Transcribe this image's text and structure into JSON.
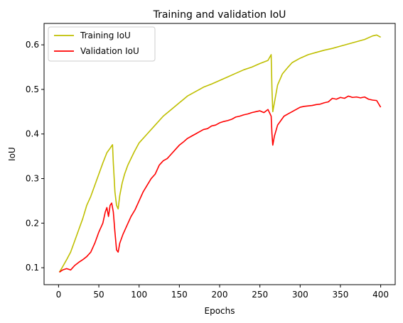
{
  "chart_data": {
    "type": "line",
    "title": "Training and validation IoU",
    "xlabel": "Epochs",
    "ylabel": "IoU",
    "xlim": [
      -18,
      418
    ],
    "ylim": [
      0.062,
      0.648
    ],
    "xticks": [
      0,
      50,
      100,
      150,
      200,
      250,
      300,
      350,
      400
    ],
    "yticks": [
      0.1,
      0.2,
      0.3,
      0.4,
      0.5,
      0.6
    ],
    "ytick_labels": [
      "0.1",
      "0.2",
      "0.3",
      "0.4",
      "0.5",
      "0.6"
    ],
    "grid": false,
    "legend_position": "top-left",
    "series": [
      {
        "name": "Training IoU",
        "color": "#bfbf00",
        "points": [
          [
            1,
            0.09
          ],
          [
            5,
            0.102
          ],
          [
            10,
            0.118
          ],
          [
            15,
            0.135
          ],
          [
            20,
            0.16
          ],
          [
            25,
            0.185
          ],
          [
            30,
            0.21
          ],
          [
            35,
            0.24
          ],
          [
            40,
            0.26
          ],
          [
            45,
            0.285
          ],
          [
            50,
            0.31
          ],
          [
            55,
            0.335
          ],
          [
            60,
            0.358
          ],
          [
            64,
            0.368
          ],
          [
            67,
            0.376
          ],
          [
            68,
            0.335
          ],
          [
            70,
            0.27
          ],
          [
            72,
            0.24
          ],
          [
            74,
            0.232
          ],
          [
            76,
            0.262
          ],
          [
            79,
            0.29
          ],
          [
            82,
            0.31
          ],
          [
            86,
            0.33
          ],
          [
            90,
            0.345
          ],
          [
            94,
            0.36
          ],
          [
            100,
            0.38
          ],
          [
            110,
            0.4
          ],
          [
            120,
            0.42
          ],
          [
            130,
            0.44
          ],
          [
            140,
            0.455
          ],
          [
            150,
            0.47
          ],
          [
            160,
            0.485
          ],
          [
            170,
            0.495
          ],
          [
            180,
            0.505
          ],
          [
            190,
            0.512
          ],
          [
            200,
            0.52
          ],
          [
            210,
            0.528
          ],
          [
            220,
            0.536
          ],
          [
            230,
            0.544
          ],
          [
            240,
            0.55
          ],
          [
            250,
            0.558
          ],
          [
            260,
            0.565
          ],
          [
            264,
            0.578
          ],
          [
            265,
            0.5
          ],
          [
            266,
            0.45
          ],
          [
            268,
            0.47
          ],
          [
            272,
            0.51
          ],
          [
            278,
            0.535
          ],
          [
            285,
            0.55
          ],
          [
            290,
            0.56
          ],
          [
            300,
            0.57
          ],
          [
            310,
            0.578
          ],
          [
            320,
            0.583
          ],
          [
            330,
            0.588
          ],
          [
            340,
            0.592
          ],
          [
            350,
            0.597
          ],
          [
            360,
            0.602
          ],
          [
            370,
            0.607
          ],
          [
            380,
            0.612
          ],
          [
            390,
            0.62
          ],
          [
            395,
            0.622
          ],
          [
            400,
            0.617
          ]
        ]
      },
      {
        "name": "Validation IoU",
        "color": "#ff0000",
        "points": [
          [
            1,
            0.09
          ],
          [
            5,
            0.095
          ],
          [
            10,
            0.098
          ],
          [
            15,
            0.095
          ],
          [
            20,
            0.105
          ],
          [
            25,
            0.112
          ],
          [
            30,
            0.118
          ],
          [
            35,
            0.125
          ],
          [
            40,
            0.135
          ],
          [
            45,
            0.155
          ],
          [
            50,
            0.18
          ],
          [
            55,
            0.2
          ],
          [
            58,
            0.225
          ],
          [
            60,
            0.235
          ],
          [
            62,
            0.215
          ],
          [
            64,
            0.24
          ],
          [
            66,
            0.245
          ],
          [
            68,
            0.225
          ],
          [
            70,
            0.18
          ],
          [
            72,
            0.14
          ],
          [
            74,
            0.135
          ],
          [
            76,
            0.155
          ],
          [
            80,
            0.175
          ],
          [
            85,
            0.195
          ],
          [
            90,
            0.215
          ],
          [
            95,
            0.23
          ],
          [
            100,
            0.25
          ],
          [
            105,
            0.27
          ],
          [
            110,
            0.285
          ],
          [
            115,
            0.3
          ],
          [
            120,
            0.31
          ],
          [
            125,
            0.33
          ],
          [
            130,
            0.34
          ],
          [
            135,
            0.345
          ],
          [
            140,
            0.355
          ],
          [
            145,
            0.365
          ],
          [
            150,
            0.375
          ],
          [
            155,
            0.382
          ],
          [
            160,
            0.39
          ],
          [
            165,
            0.395
          ],
          [
            170,
            0.4
          ],
          [
            175,
            0.405
          ],
          [
            180,
            0.41
          ],
          [
            185,
            0.412
          ],
          [
            190,
            0.418
          ],
          [
            195,
            0.42
          ],
          [
            200,
            0.425
          ],
          [
            205,
            0.428
          ],
          [
            210,
            0.43
          ],
          [
            215,
            0.433
          ],
          [
            220,
            0.438
          ],
          [
            225,
            0.44
          ],
          [
            230,
            0.443
          ],
          [
            235,
            0.445
          ],
          [
            240,
            0.448
          ],
          [
            245,
            0.45
          ],
          [
            250,
            0.452
          ],
          [
            255,
            0.448
          ],
          [
            260,
            0.455
          ],
          [
            264,
            0.44
          ],
          [
            265,
            0.4
          ],
          [
            266,
            0.375
          ],
          [
            268,
            0.395
          ],
          [
            272,
            0.42
          ],
          [
            276,
            0.43
          ],
          [
            280,
            0.44
          ],
          [
            285,
            0.445
          ],
          [
            290,
            0.45
          ],
          [
            295,
            0.455
          ],
          [
            300,
            0.46
          ],
          [
            305,
            0.462
          ],
          [
            310,
            0.463
          ],
          [
            315,
            0.464
          ],
          [
            320,
            0.466
          ],
          [
            325,
            0.467
          ],
          [
            330,
            0.47
          ],
          [
            335,
            0.472
          ],
          [
            340,
            0.48
          ],
          [
            345,
            0.478
          ],
          [
            350,
            0.482
          ],
          [
            355,
            0.48
          ],
          [
            360,
            0.485
          ],
          [
            365,
            0.482
          ],
          [
            370,
            0.483
          ],
          [
            375,
            0.481
          ],
          [
            380,
            0.483
          ],
          [
            385,
            0.478
          ],
          [
            390,
            0.476
          ],
          [
            395,
            0.475
          ],
          [
            400,
            0.46
          ]
        ]
      }
    ]
  }
}
